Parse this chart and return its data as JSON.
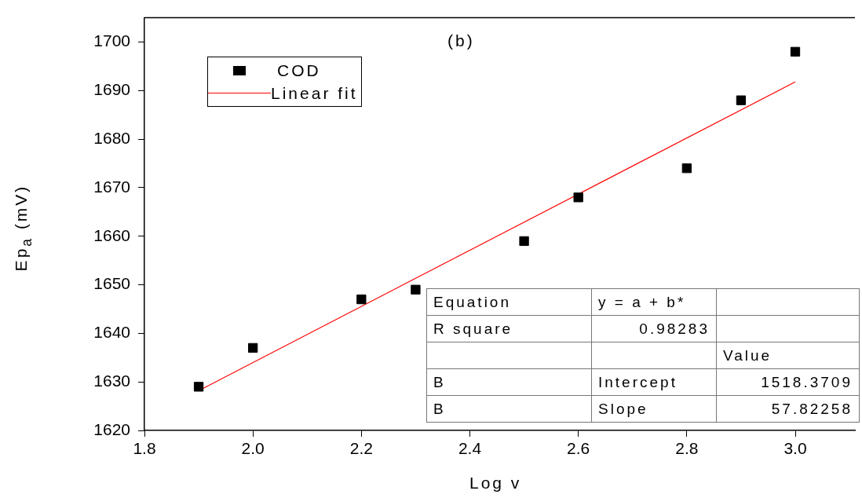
{
  "chart_data": {
    "type": "scatter",
    "title": "(b)",
    "xlabel": "Log v",
    "ylabel": "Ep$_{a}$ (mV)",
    "series": [
      {
        "name": "COD",
        "color": "#000000",
        "marker": "square",
        "x": [
          1.9,
          2.0,
          2.2,
          2.3,
          2.5,
          2.6,
          2.8,
          2.9,
          3.0
        ],
        "values": [
          1629,
          1637,
          1647,
          1649,
          1659,
          1668,
          1674,
          1688,
          1698
        ]
      },
      {
        "name": "Linear fit",
        "type": "line",
        "color": "#ff0000",
        "marker": "none",
        "x": [
          1.9,
          3.0
        ],
        "values": [
          1628.2,
          1691.8
        ]
      }
    ],
    "xlim": [
      1.8,
      3.11
    ],
    "xticks": [
      1.8,
      {
        "value": 2.0,
        "label": "2.0"
      },
      2.2,
      2.4,
      2.6,
      2.8,
      {
        "value": 3.0,
        "label": "3.0"
      }
    ],
    "ylim": [
      1620,
      1705
    ],
    "yticks": [
      1620,
      1630,
      1640,
      1650,
      1660,
      1670,
      1680,
      1690,
      1700
    ],
    "grid": false,
    "legend": "top left",
    "annotations": [
      "Equation",
      "y = a + b*",
      "R square",
      "0.98283",
      "Value",
      "B",
      "Intercept",
      "1518.3709",
      "B",
      "Slope",
      "57.82258"
    ]
  }
}
